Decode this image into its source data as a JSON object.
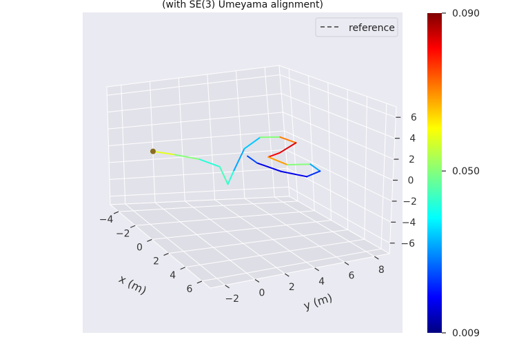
{
  "chart_data": {
    "type": "line",
    "projection": "3d",
    "title": "(with SE(3) Umeyama alignment)",
    "xlabel": "x (m)",
    "ylabel": "y (m)",
    "zlabel": "",
    "x_ticks": [
      "−4",
      "−2",
      "0",
      "2",
      "4",
      "6"
    ],
    "y_ticks": [
      "−2",
      "0",
      "2",
      "4",
      "6",
      "8"
    ],
    "z_ticks": [
      "6",
      "4",
      "2",
      "0",
      "−2",
      "−4",
      "−6"
    ],
    "xlim": [
      -5,
      7
    ],
    "ylim": [
      -3,
      9
    ],
    "zlim": [
      -7,
      7
    ],
    "grid": true,
    "legend": {
      "position": "top-right",
      "entries": [
        {
          "label": "reference",
          "style": "dashed",
          "color": "#666666"
        }
      ]
    },
    "colorbar": {
      "colormap": "jet",
      "min": 0.009,
      "max": 0.09,
      "tick_labels": [
        "0.090",
        "0.050",
        "0.009"
      ],
      "tick_values": [
        0.09,
        0.05,
        0.009
      ]
    },
    "series": [
      {
        "name": "reference",
        "style": "dashed",
        "points": [
          {
            "x": -3.2,
            "y": -1.0,
            "z": 0.2,
            "e": 0.06
          },
          {
            "x": -2.0,
            "y": -0.2,
            "z": 0.4,
            "e": 0.055
          },
          {
            "x": -0.5,
            "y": 0.6,
            "z": 0.6,
            "e": 0.045
          },
          {
            "x": 0.8,
            "y": 1.2,
            "z": 0.4,
            "e": 0.04
          },
          {
            "x": 1.0,
            "y": 1.6,
            "z": -1.4,
            "e": 0.05
          },
          {
            "x": 1.4,
            "y": 1.8,
            "z": 0.2,
            "e": 0.035
          },
          {
            "x": 1.6,
            "y": 2.4,
            "z": 2.4,
            "e": 0.03
          },
          {
            "x": 2.4,
            "y": 3.0,
            "z": 3.8,
            "e": 0.04
          },
          {
            "x": 3.6,
            "y": 3.6,
            "z": 4.2,
            "e": 0.06
          },
          {
            "x": 4.0,
            "y": 4.4,
            "z": 3.6,
            "e": 0.08
          },
          {
            "x": 3.2,
            "y": 3.8,
            "z": 2.4,
            "e": 0.085
          },
          {
            "x": 2.6,
            "y": 3.4,
            "z": 1.8,
            "e": 0.075
          },
          {
            "x": 3.4,
            "y": 4.2,
            "z": 1.2,
            "e": 0.06
          },
          {
            "x": 4.6,
            "y": 5.0,
            "z": 1.6,
            "e": 0.04
          },
          {
            "x": 5.0,
            "y": 5.4,
            "z": 1.0,
            "e": 0.025
          },
          {
            "x": 4.2,
            "y": 5.0,
            "z": 0.2,
            "e": 0.02
          },
          {
            "x": 3.0,
            "y": 4.0,
            "z": 0.4,
            "e": 0.015
          },
          {
            "x": 2.0,
            "y": 3.0,
            "z": 1.0,
            "e": 0.02
          },
          {
            "x": 1.6,
            "y": 2.6,
            "z": 1.6,
            "e": 0.03
          }
        ]
      }
    ]
  }
}
